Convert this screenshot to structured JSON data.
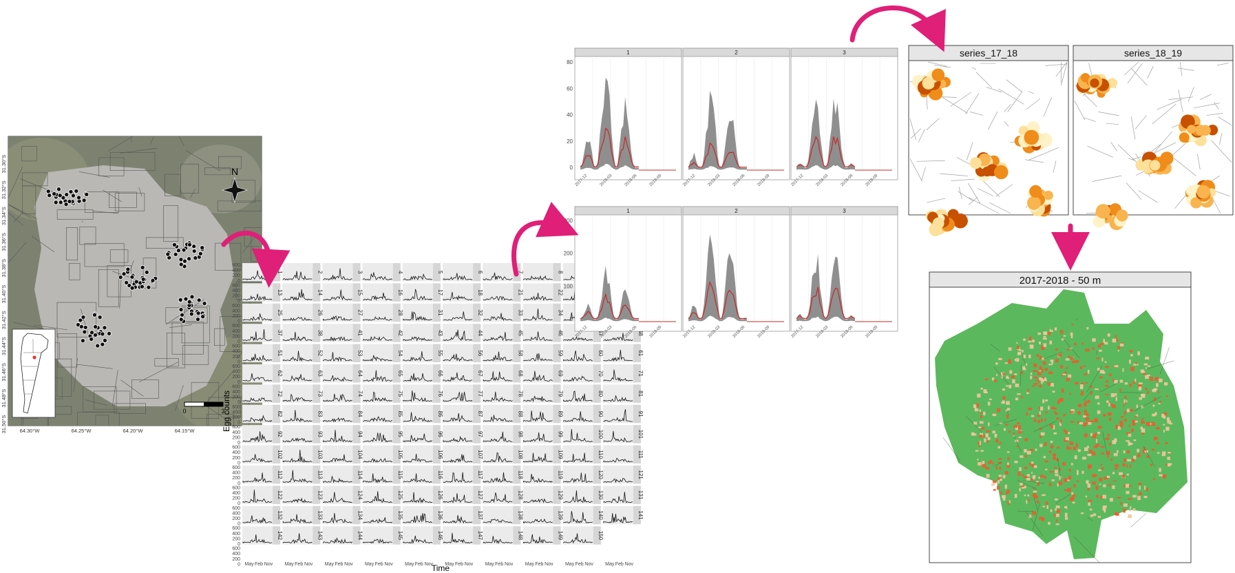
{
  "study_map": {
    "north_label": "N",
    "lat_labels": [
      "31.30°S",
      "31.32°S",
      "31.34°S",
      "31.36°S",
      "31.38°S",
      "31.40°S",
      "31.42°S",
      "31.44°S",
      "31.46°S",
      "31.48°S",
      "31.50°S"
    ],
    "lon_labels": [
      "64.30°W",
      "64.25°W",
      "64.20°W",
      "64.15°W"
    ],
    "scale_labels": [
      "0",
      "3"
    ],
    "colors": {
      "satellite": "#8a8c7c",
      "urban": "#b8b7b3",
      "points": "#111111",
      "inset_dot": "#e53935"
    }
  },
  "small_multiples": {
    "y_axis_label": "Egg counts",
    "x_axis_label": "Time",
    "y_ticks": [
      "600",
      "400",
      "200",
      "0"
    ],
    "x_ticks": [
      "May",
      "Feb",
      "Nov"
    ],
    "panel_ids": [
      "1",
      "2",
      "3",
      "4",
      "5",
      "6",
      "7",
      "8",
      "11",
      "12",
      "13",
      "14",
      "15",
      "16",
      "17",
      "18",
      "21",
      "22",
      "23",
      "24",
      "25",
      "26",
      "27",
      "28",
      "31",
      "32",
      "33",
      "34",
      "35",
      "36",
      "37",
      "38",
      "41",
      "42",
      "43",
      "44",
      "45",
      "46",
      "47",
      "48",
      "51",
      "52",
      "53",
      "54",
      "55",
      "56",
      "58",
      "59",
      "60",
      "61",
      "62",
      "63",
      "64",
      "65",
      "66",
      "67",
      "68",
      "69",
      "70",
      "71",
      "72",
      "73",
      "74",
      "75",
      "76",
      "77",
      "78",
      "79",
      "80",
      "81",
      "82",
      "83",
      "84",
      "85",
      "86",
      "87",
      "88",
      "89",
      "90",
      "91",
      "92",
      "93",
      "94",
      "95",
      "96",
      "97",
      "98",
      "99",
      "100",
      "101",
      "102",
      "103",
      "104",
      "105",
      "106",
      "107",
      "108",
      "109",
      "110",
      "111",
      "112",
      "113",
      "114",
      "115",
      "116",
      "117",
      "118",
      "119",
      "120",
      "121",
      "122",
      "123",
      "124",
      "125",
      "126",
      "127",
      "128",
      "129",
      "130",
      "131",
      "132",
      "133",
      "134",
      "135",
      "136",
      "137",
      "138",
      "139",
      "140",
      "141",
      "142",
      "143",
      "144",
      "145",
      "146",
      "147",
      "148",
      "149",
      "150"
    ]
  },
  "cluster_facets": {
    "panel_titles": [
      "1",
      "2",
      "3"
    ],
    "top_row": {
      "y_ticks": [
        "0",
        "20",
        "40",
        "60",
        "80"
      ],
      "ylim": [
        0,
        85
      ]
    },
    "bottom_row": {
      "y_ticks": [
        "0",
        "100",
        "200",
        "300"
      ],
      "ylim": [
        0,
        310
      ]
    },
    "x_ticks": [
      "2017-12",
      "2018-03",
      "2018-06",
      "2018-09"
    ],
    "colors": {
      "band": "#8f8f8f",
      "median": "#c62828",
      "strip": "#d9d9d9"
    }
  },
  "hotspot_maps": {
    "titles": [
      "series_17_18",
      "series_18_19"
    ],
    "colors": [
      "#c75100",
      "#f08c1a",
      "#f9b44f",
      "#fde09a",
      "#fff2c6"
    ]
  },
  "risk_map": {
    "title": "2017-2018 - 50 m",
    "colors": {
      "buffer": "#5cb85c",
      "risk": "#ef5a2f",
      "light": "#f2c6a0"
    }
  },
  "arrows": {
    "color": "#e01f78"
  }
}
